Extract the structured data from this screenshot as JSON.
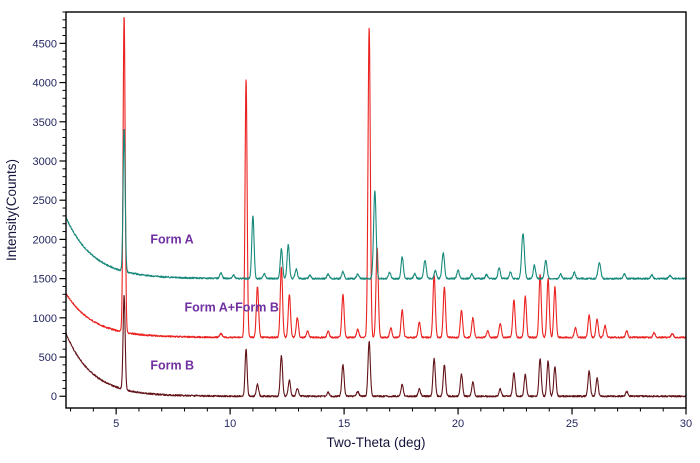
{
  "figure": {
    "title": "",
    "background_color": "#ffffff",
    "frame_color": "#000000",
    "tick_label_color": "#23265f",
    "axis_title_color": "#14143c"
  },
  "chart_data": {
    "type": "line",
    "title": "",
    "xlabel": "Two-Theta (deg)",
    "ylabel": "Intensity(Counts)",
    "xlim": [
      2.8,
      30
    ],
    "ylim": [
      -150,
      4900
    ],
    "x_ticks": [
      5,
      10,
      15,
      20,
      25,
      30
    ],
    "x_minor_step": 1,
    "y_ticks": [
      0,
      500,
      1000,
      1500,
      2000,
      2500,
      3000,
      3500,
      4000,
      4500
    ],
    "y_minor_step": 100,
    "grid": false,
    "legend": "none",
    "annotations": [
      {
        "text": "Form A",
        "x": 6.5,
        "y": 1950,
        "color": "#7030a0"
      },
      {
        "text": "Form A+Form B",
        "x": 8.0,
        "y": 1080,
        "color": "#7030a0"
      },
      {
        "text": "Form B",
        "x": 6.5,
        "y": 340,
        "color": "#7030a0"
      }
    ],
    "series": [
      {
        "name": "Form B",
        "color": "#621318",
        "offset": 0,
        "background": {
          "amplitude": 800,
          "tau": 1.15
        },
        "noise": 10,
        "peaks": [
          [
            5.35,
            1200,
            0.045
          ],
          [
            10.7,
            600,
            0.045
          ],
          [
            11.2,
            150,
            0.05
          ],
          [
            12.25,
            520,
            0.05
          ],
          [
            12.6,
            200,
            0.05
          ],
          [
            12.95,
            100,
            0.05
          ],
          [
            14.3,
            50,
            0.05
          ],
          [
            14.95,
            400,
            0.05
          ],
          [
            15.6,
            60,
            0.05
          ],
          [
            16.1,
            700,
            0.05
          ],
          [
            17.55,
            150,
            0.05
          ],
          [
            18.3,
            90,
            0.05
          ],
          [
            18.95,
            480,
            0.05
          ],
          [
            19.4,
            400,
            0.05
          ],
          [
            20.15,
            280,
            0.05
          ],
          [
            20.65,
            180,
            0.05
          ],
          [
            21.85,
            90,
            0.05
          ],
          [
            22.45,
            300,
            0.05
          ],
          [
            22.95,
            280,
            0.05
          ],
          [
            23.6,
            480,
            0.05
          ],
          [
            23.95,
            450,
            0.05
          ],
          [
            24.25,
            380,
            0.05
          ],
          [
            25.75,
            320,
            0.05
          ],
          [
            26.1,
            230,
            0.05
          ],
          [
            27.4,
            60,
            0.05
          ]
        ]
      },
      {
        "name": "Form A+Form B",
        "color": "#ea2220",
        "offset": 750,
        "background": {
          "amplitude": 560,
          "tau": 1.2
        },
        "noise": 10,
        "peaks": [
          [
            5.35,
            4050,
            0.045
          ],
          [
            9.6,
            50,
            0.05
          ],
          [
            10.7,
            3300,
            0.045
          ],
          [
            11.2,
            650,
            0.05
          ],
          [
            12.25,
            900,
            0.05
          ],
          [
            12.6,
            550,
            0.05
          ],
          [
            12.95,
            250,
            0.05
          ],
          [
            13.4,
            80,
            0.05
          ],
          [
            14.3,
            80,
            0.05
          ],
          [
            14.95,
            550,
            0.05
          ],
          [
            15.6,
            100,
            0.05
          ],
          [
            16.1,
            3950,
            0.05
          ],
          [
            16.45,
            1150,
            0.05
          ],
          [
            17.05,
            120,
            0.05
          ],
          [
            17.55,
            350,
            0.05
          ],
          [
            18.3,
            200,
            0.05
          ],
          [
            18.95,
            800,
            0.05
          ],
          [
            19.4,
            650,
            0.05
          ],
          [
            20.15,
            350,
            0.05
          ],
          [
            20.65,
            250,
            0.05
          ],
          [
            21.3,
            80,
            0.05
          ],
          [
            21.85,
            180,
            0.05
          ],
          [
            22.45,
            480,
            0.05
          ],
          [
            22.95,
            520,
            0.05
          ],
          [
            23.6,
            800,
            0.05
          ],
          [
            23.95,
            750,
            0.05
          ],
          [
            24.25,
            650,
            0.05
          ],
          [
            25.15,
            120,
            0.05
          ],
          [
            25.75,
            280,
            0.05
          ],
          [
            26.1,
            230,
            0.05
          ],
          [
            26.45,
            150,
            0.05
          ],
          [
            27.4,
            80,
            0.05
          ],
          [
            28.6,
            60,
            0.05
          ],
          [
            29.4,
            50,
            0.05
          ]
        ]
      },
      {
        "name": "Form A",
        "color": "#17897b",
        "offset": 1500,
        "background": {
          "amplitude": 780,
          "tau": 1.2
        },
        "noise": 10,
        "peaks": [
          [
            5.35,
            1820,
            0.045
          ],
          [
            9.6,
            70,
            0.05
          ],
          [
            10.15,
            45,
            0.05
          ],
          [
            11.0,
            800,
            0.05
          ],
          [
            11.5,
            60,
            0.05
          ],
          [
            12.25,
            380,
            0.05
          ],
          [
            12.55,
            430,
            0.05
          ],
          [
            12.9,
            120,
            0.05
          ],
          [
            13.5,
            40,
            0.05
          ],
          [
            14.3,
            60,
            0.05
          ],
          [
            14.95,
            90,
            0.05
          ],
          [
            15.6,
            60,
            0.05
          ],
          [
            16.35,
            1120,
            0.055
          ],
          [
            17.0,
            80,
            0.05
          ],
          [
            17.55,
            280,
            0.05
          ],
          [
            18.1,
            60,
            0.05
          ],
          [
            18.55,
            230,
            0.055
          ],
          [
            19.0,
            100,
            0.05
          ],
          [
            19.35,
            330,
            0.055
          ],
          [
            20.0,
            110,
            0.05
          ],
          [
            20.6,
            60,
            0.05
          ],
          [
            21.25,
            50,
            0.05
          ],
          [
            21.8,
            140,
            0.05
          ],
          [
            22.3,
            90,
            0.05
          ],
          [
            22.85,
            580,
            0.06
          ],
          [
            23.35,
            170,
            0.05
          ],
          [
            23.85,
            230,
            0.055
          ],
          [
            24.5,
            60,
            0.05
          ],
          [
            25.1,
            80,
            0.05
          ],
          [
            26.2,
            200,
            0.06
          ],
          [
            27.3,
            60,
            0.05
          ],
          [
            28.5,
            50,
            0.05
          ],
          [
            29.3,
            40,
            0.05
          ]
        ]
      }
    ]
  }
}
